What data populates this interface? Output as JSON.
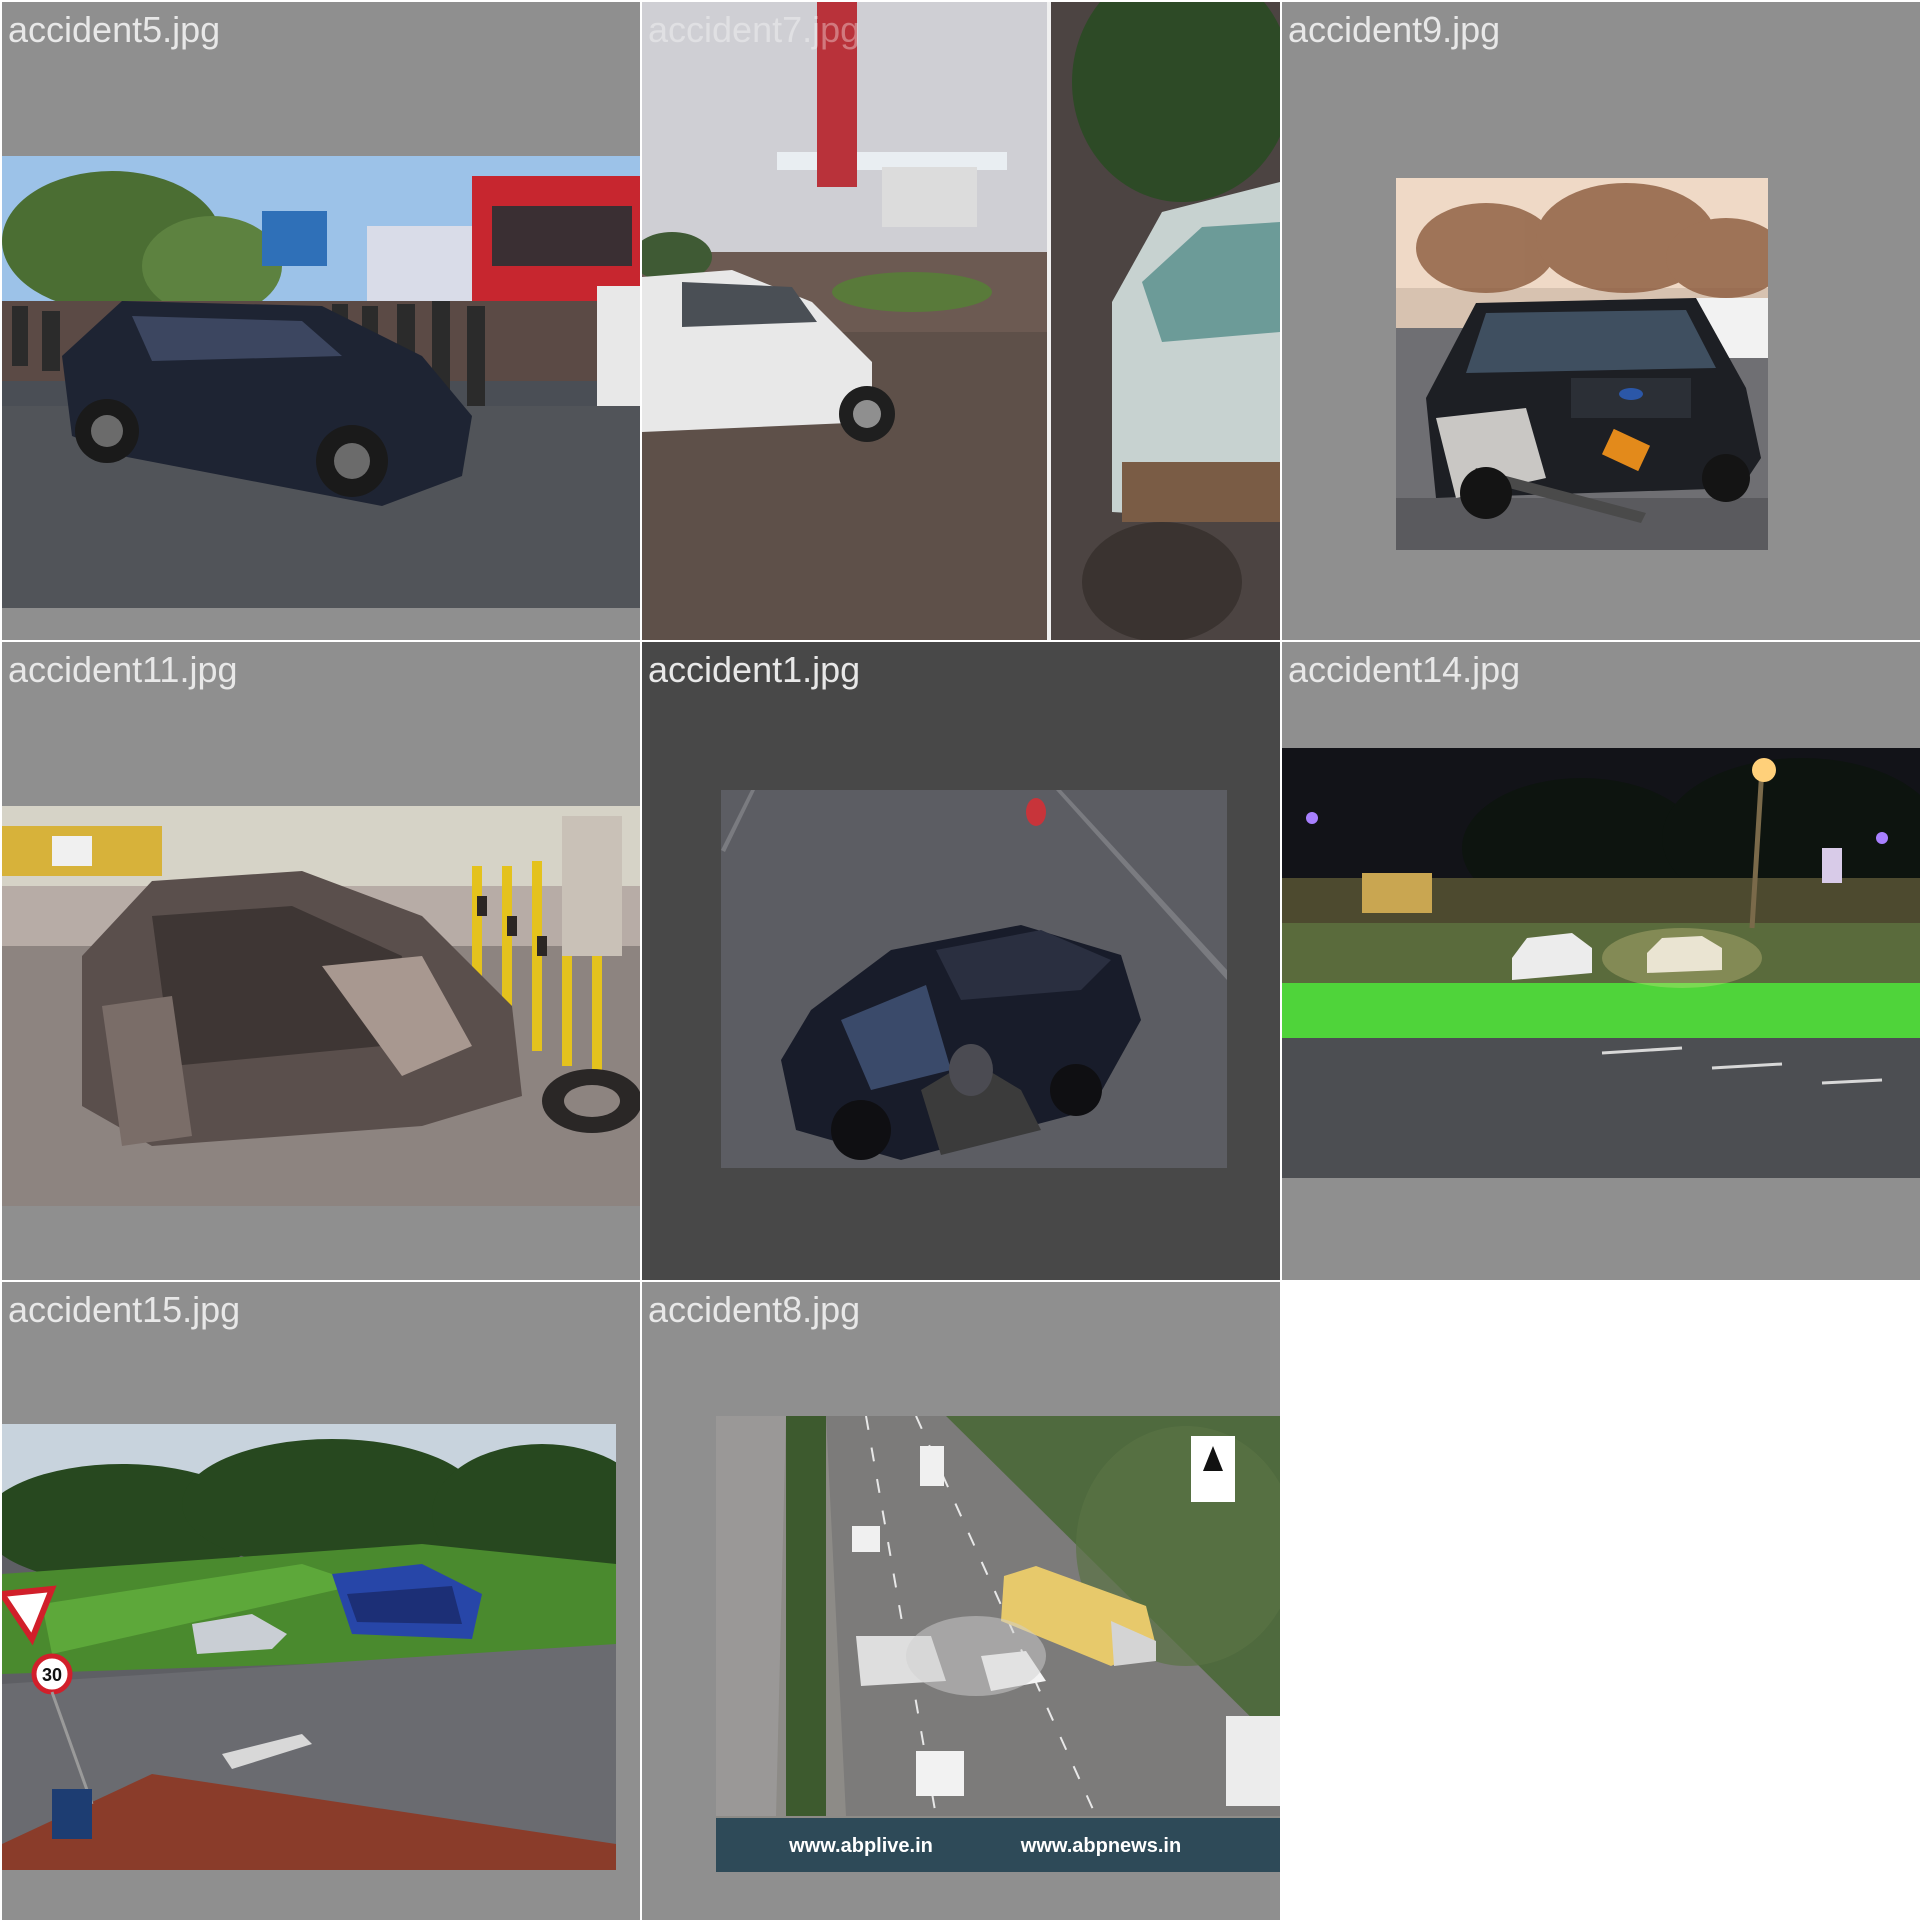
{
  "grid": {
    "background": "#ffffff",
    "tile_gray": "#8f8f8f",
    "tile_dark": "#484848",
    "tiles": [
      {
        "filename": "accident5.jpg",
        "scene": "wrecked dark SUV on city street, crowd of onlookers, red bus"
      },
      {
        "filename": "accident7.jpg",
        "scene": "white hatchback with crushed front near petrol station and trees"
      },
      {
        "filename": "accident9.jpg",
        "scene": "black sedan with smashed front bumper and hanging license plate"
      },
      {
        "filename": "accident11.jpg",
        "scene": "burnt-out car shell beside highway railing, bystanders"
      },
      {
        "filename": "accident1.jpg",
        "scene": "overhead CCTV view of motorcycle hitting dark SUV at night"
      },
      {
        "filename": "accident14.jpg",
        "scene": "night collision of two white cars on road with green verge and street lights"
      },
      {
        "filename": "accident15.jpg",
        "scene": "overturned blue car at junction with give way and 30 signs"
      },
      {
        "filename": "accident8.jpg",
        "scene": "highway CCTV of bus and cars colliding"
      }
    ],
    "watermarks": {
      "abp_left": "www.abplive.in",
      "abp_right": "www.abpnews.in",
      "sign_speed": "30"
    }
  }
}
